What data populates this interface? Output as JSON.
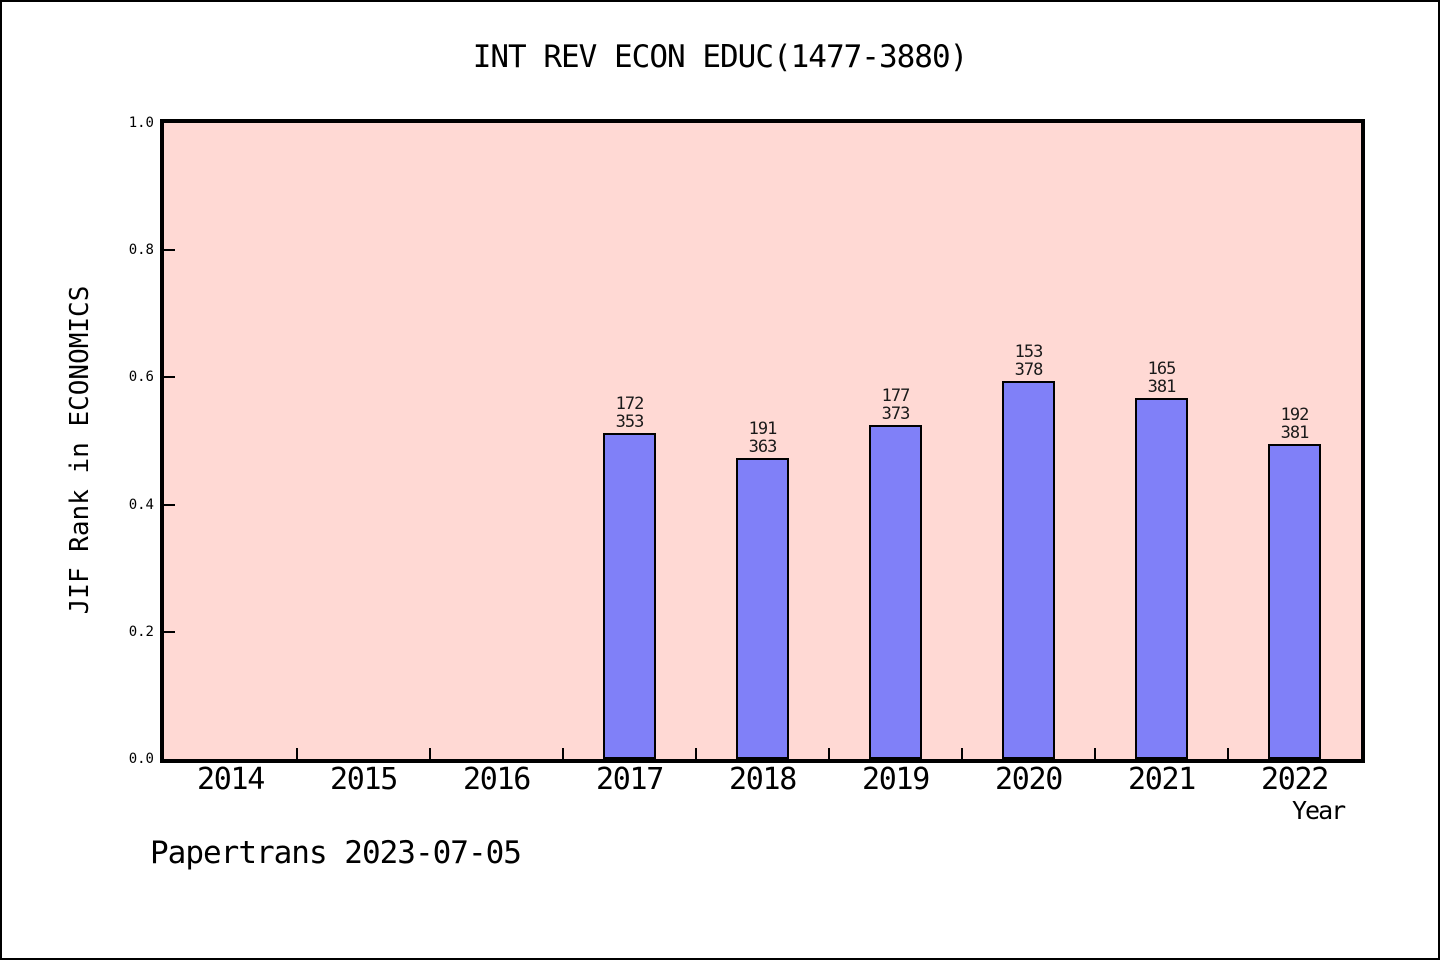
{
  "figure": {
    "footer": "Papertrans 2023-07-05"
  },
  "chart_data": {
    "type": "bar",
    "title": "INT REV ECON EDUC(1477-3880)",
    "xlabel": "Year",
    "ylabel": "JIF Rank in ECONOMICS",
    "ylim": [
      0.0,
      1.0
    ],
    "yticks": [
      "0.0",
      "0.2",
      "0.4",
      "0.6",
      "0.8",
      "1.0"
    ],
    "grid": false,
    "legend_position": "none",
    "plot_background": "#FFD9D4",
    "bar_color": "#8080F8",
    "bar_edge_color": "#000000",
    "categories": [
      "2014",
      "2015",
      "2016",
      "2017",
      "2018",
      "2019",
      "2020",
      "2021",
      "2022"
    ],
    "bars": [
      {
        "category": "2017",
        "rank": 172,
        "total": 353,
        "value": 0.513
      },
      {
        "category": "2018",
        "rank": 191,
        "total": 363,
        "value": 0.474
      },
      {
        "category": "2019",
        "rank": 177,
        "total": 373,
        "value": 0.525
      },
      {
        "category": "2020",
        "rank": 153,
        "total": 378,
        "value": 0.595
      },
      {
        "category": "2021",
        "rank": 165,
        "total": 381,
        "value": 0.567
      },
      {
        "category": "2022",
        "rank": 192,
        "total": 381,
        "value": 0.496
      }
    ]
  }
}
